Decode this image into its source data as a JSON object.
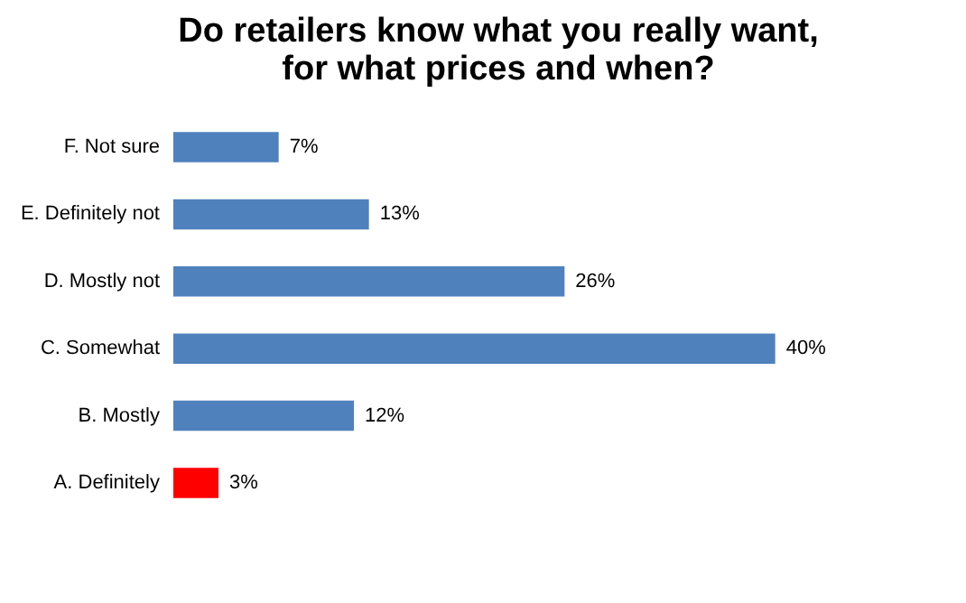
{
  "chart_data": {
    "type": "bar",
    "orientation": "horizontal",
    "title": "Do retailers know what you really want,\nfor what prices and when?",
    "categories": [
      "F. Not sure",
      "E. Definitely not",
      "D. Mostly not",
      "C. Somewhat",
      "B. Mostly",
      "A. Definitely"
    ],
    "values": [
      7,
      13,
      26,
      40,
      12,
      3
    ],
    "colors": [
      "#4f81bd",
      "#4f81bd",
      "#4f81bd",
      "#4f81bd",
      "#4f81bd",
      "#ff0000"
    ],
    "value_labels": [
      "7%",
      "13%",
      "26%",
      "40%",
      "12%",
      "3%"
    ],
    "grid": false
  }
}
